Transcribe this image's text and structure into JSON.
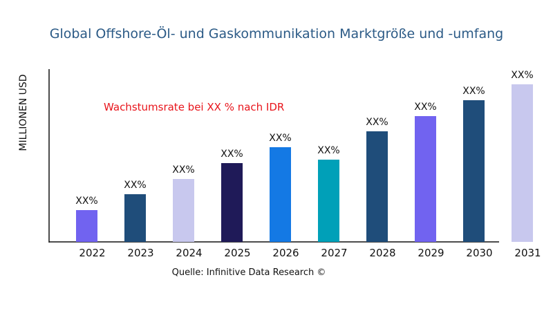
{
  "chart_data": {
    "type": "bar",
    "title": "Global Offshore-Öl- und Gaskommunikation Marktgröße und -umfang",
    "xlabel": "",
    "ylabel": "MILLIONEN USD",
    "categories": [
      "2022",
      "2023",
      "2024",
      "2025",
      "2026",
      "2027",
      "2028",
      "2029",
      "2030",
      "2031"
    ],
    "values": [
      46,
      69,
      91,
      114,
      137,
      119,
      160,
      182,
      205,
      228
    ],
    "data_labels": [
      "XX%",
      "XX%",
      "XX%",
      "XX%",
      "XX%",
      "XX%",
      "XX%",
      "XX%",
      "XX%",
      "XX%"
    ],
    "colors": [
      "#7163f0",
      "#1f4d7a",
      "#c8c8ee",
      "#1f1a58",
      "#1479e4",
      "#00a0b8",
      "#1f4d7a",
      "#7163f0",
      "#1f4d7a",
      "#c8c8ee"
    ],
    "ylim": [
      0,
      250
    ],
    "grid": false,
    "annotation": "Wachstumsrate bei XX % nach IDR",
    "source": "Quelle: Infinitive Data Research ©"
  }
}
